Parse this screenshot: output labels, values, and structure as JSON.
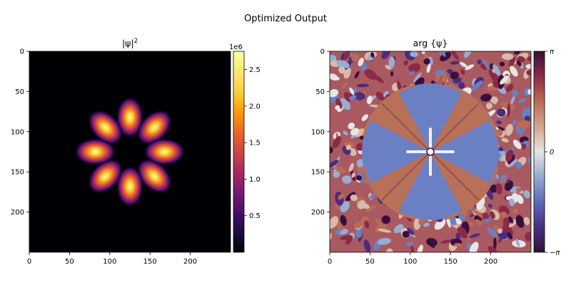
{
  "figure": {
    "suptitle": "Optimized Output"
  },
  "chart_data": [
    {
      "type": "heatmap",
      "title": "|ψ|²",
      "title_text": "|ψ|",
      "title_exponent": "2",
      "xlabel": "",
      "ylabel": "",
      "xlim": [
        0,
        250
      ],
      "ylim": [
        250,
        0
      ],
      "xticks": [
        0,
        50,
        100,
        150,
        200
      ],
      "yticks": [
        0,
        50,
        100,
        150,
        200
      ],
      "colormap": "inferno",
      "colorbar": {
        "offset_label": "1e6",
        "range": [
          0,
          2.75
        ],
        "ticks": [
          0.5,
          1.0,
          1.5,
          2.0,
          2.5
        ],
        "tick_labels": [
          "0.5",
          "1.0",
          "1.5",
          "2.0",
          "2.5"
        ]
      },
      "pattern": {
        "description_lobes": 8,
        "center": [
          125,
          125
        ],
        "peak_radius": 43,
        "peak_value_1e6": 2.75
      }
    },
    {
      "type": "heatmap",
      "title": "arg {ψ}",
      "xlabel": "",
      "ylabel": "",
      "xlim": [
        0,
        250
      ],
      "ylim": [
        250,
        0
      ],
      "xticks": [
        0,
        50,
        100,
        150,
        200
      ],
      "yticks": [
        0,
        50,
        100,
        150,
        200
      ],
      "colormap": "twilight_shifted",
      "colorbar": {
        "range": [
          -3.14159,
          3.14159
        ],
        "ticks": [
          3.14159,
          0,
          -3.14159
        ],
        "tick_labels": [
          "π",
          "0",
          "−π"
        ]
      },
      "pattern": {
        "center": [
          125,
          125
        ],
        "inner_radius": 85,
        "sectors": 4
      }
    }
  ],
  "colors": {
    "phase_pos": "#b87058",
    "phase_neg": "#6b80c4",
    "phase_max": "#3a0f3d",
    "phase_zero": "#e6e6e6"
  }
}
